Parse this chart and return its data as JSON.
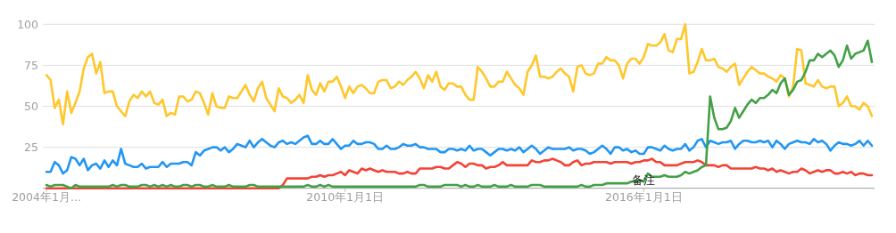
{
  "chart_data": {
    "type": "line",
    "x": [
      "2004-01",
      "2004-02",
      "2004-03",
      "2004-04",
      "2004-05",
      "2004-06",
      "2004-07",
      "2004-08",
      "2004-09",
      "2004-10",
      "2004-11",
      "2004-12",
      "2005-01",
      "2005-02",
      "2005-03",
      "2005-04",
      "2005-05",
      "2005-06",
      "2005-07",
      "2005-08",
      "2005-09",
      "2005-10",
      "2005-11",
      "2005-12",
      "2006-01",
      "2006-02",
      "2006-03",
      "2006-04",
      "2006-05",
      "2006-06",
      "2006-07",
      "2006-08",
      "2006-09",
      "2006-10",
      "2006-11",
      "2006-12",
      "2007-01",
      "2007-02",
      "2007-03",
      "2007-04",
      "2007-05",
      "2007-06",
      "2007-07",
      "2007-08",
      "2007-09",
      "2007-10",
      "2007-11",
      "2007-12",
      "2008-01",
      "2008-02",
      "2008-03",
      "2008-04",
      "2008-05",
      "2008-06",
      "2008-07",
      "2008-08",
      "2008-09",
      "2008-10",
      "2008-11",
      "2008-12",
      "2009-01",
      "2009-02",
      "2009-03",
      "2009-04",
      "2009-05",
      "2009-06",
      "2009-07",
      "2009-08",
      "2009-09",
      "2009-10",
      "2009-11",
      "2009-12",
      "2010-01",
      "2010-02",
      "2010-03",
      "2010-04",
      "2010-05",
      "2010-06",
      "2010-07",
      "2010-08",
      "2010-09",
      "2010-10",
      "2010-11",
      "2010-12",
      "2011-01",
      "2011-02",
      "2011-03",
      "2011-04",
      "2011-05",
      "2011-06",
      "2011-07",
      "2011-08",
      "2011-09",
      "2011-10",
      "2011-11",
      "2011-12",
      "2012-01",
      "2012-02",
      "2012-03",
      "2012-04",
      "2012-05",
      "2012-06",
      "2012-07",
      "2012-08",
      "2012-09",
      "2012-10",
      "2012-11",
      "2012-12",
      "2013-01",
      "2013-02",
      "2013-03",
      "2013-04",
      "2013-05",
      "2013-06",
      "2013-07",
      "2013-08",
      "2013-09",
      "2013-10",
      "2013-11",
      "2013-12",
      "2014-01",
      "2014-02",
      "2014-03",
      "2014-04",
      "2014-05",
      "2014-06",
      "2014-07",
      "2014-08",
      "2014-09",
      "2014-10",
      "2014-11",
      "2014-12",
      "2015-01",
      "2015-02",
      "2015-03",
      "2015-04",
      "2015-05",
      "2015-06",
      "2015-07",
      "2015-08",
      "2015-09",
      "2015-10",
      "2015-11",
      "2015-12",
      "2016-01",
      "2016-02",
      "2016-03",
      "2016-04",
      "2016-05",
      "2016-06",
      "2016-07",
      "2016-08",
      "2016-09",
      "2016-10",
      "2016-11",
      "2016-12",
      "2017-01",
      "2017-02",
      "2017-03",
      "2017-04",
      "2017-05",
      "2017-06",
      "2017-07",
      "2017-08",
      "2017-09",
      "2017-10",
      "2017-11",
      "2017-12",
      "2018-01",
      "2018-02",
      "2018-03",
      "2018-04",
      "2018-05",
      "2018-06",
      "2018-07",
      "2018-08",
      "2018-09",
      "2018-10",
      "2018-11",
      "2018-12",
      "2019-01",
      "2019-02",
      "2019-03",
      "2019-04",
      "2019-05",
      "2019-06",
      "2019-07",
      "2019-08",
      "2019-09",
      "2019-10",
      "2019-11",
      "2019-12",
      "2020-01",
      "2020-02",
      "2020-03",
      "2020-04",
      "2020-05",
      "2020-06",
      "2020-07",
      "2020-08"
    ],
    "series": [
      {
        "color": "#2196f3",
        "values": [
          10,
          10,
          16,
          14,
          9,
          11,
          19,
          18,
          14,
          18,
          11,
          14,
          15,
          12,
          17,
          13,
          17,
          14,
          24,
          15,
          14,
          13,
          13,
          15,
          12,
          13,
          13,
          13,
          16,
          13,
          15,
          15,
          15,
          16,
          16,
          14,
          22,
          20,
          23,
          24,
          25,
          25,
          23,
          25,
          22,
          24,
          27,
          26,
          25,
          29,
          25,
          28,
          30,
          28,
          26,
          25,
          28,
          29,
          27,
          28,
          27,
          29,
          31,
          32,
          27,
          27,
          29,
          27,
          27,
          30,
          27,
          24,
          26,
          26,
          29,
          27,
          27,
          28,
          28,
          27,
          24,
          24,
          26,
          24,
          24,
          25,
          27,
          26,
          26,
          27,
          25,
          25,
          24,
          24,
          24,
          22,
          22,
          24,
          24,
          23,
          24,
          23,
          26,
          23,
          24,
          24,
          22,
          20,
          22,
          24,
          24,
          23,
          24,
          23,
          25,
          22,
          24,
          26,
          24,
          21,
          23,
          25,
          24,
          24,
          24,
          24,
          25,
          23,
          24,
          24,
          23,
          21,
          22,
          24,
          26,
          24,
          21,
          25,
          25,
          23,
          24,
          22,
          23,
          21,
          21,
          25,
          25,
          24,
          23,
          26,
          24,
          23,
          24,
          24,
          27,
          23,
          25,
          29,
          30,
          25,
          29,
          28,
          27,
          28,
          28,
          29,
          24,
          27,
          29,
          29,
          28,
          28,
          29,
          28,
          29,
          25,
          29,
          27,
          24,
          27,
          28,
          29,
          28,
          28,
          27,
          30,
          28,
          29,
          27,
          23,
          26,
          28,
          27,
          27,
          26,
          27,
          29,
          26,
          29,
          26
        ]
      },
      {
        "color": "#f44336",
        "values": [
          0,
          0,
          0,
          0,
          0,
          0,
          0,
          0,
          0,
          0,
          0,
          0,
          0,
          0,
          0,
          0,
          0,
          0,
          0,
          0,
          0,
          0,
          0,
          0,
          0,
          0,
          0,
          0,
          0,
          0,
          0,
          0,
          0,
          0,
          0,
          0,
          0,
          0,
          0,
          0,
          0,
          0,
          0,
          0,
          0,
          0,
          0,
          0,
          0,
          0,
          0,
          0,
          0,
          0,
          0,
          0,
          0,
          2,
          6,
          6,
          6,
          6,
          6,
          6,
          7,
          7,
          8,
          7,
          8,
          8,
          9,
          10,
          8,
          11,
          10,
          9,
          12,
          11,
          12,
          11,
          10,
          11,
          10,
          10,
          10,
          9,
          9,
          10,
          9,
          9,
          12,
          12,
          12,
          12,
          13,
          13,
          12,
          12,
          14,
          16,
          15,
          13,
          15,
          15,
          14,
          14,
          12,
          13,
          13,
          14,
          16,
          14,
          14,
          14,
          14,
          14,
          14,
          17,
          16,
          16,
          17,
          17,
          18,
          17,
          16,
          14,
          14,
          16,
          17,
          14,
          15,
          15,
          16,
          16,
          16,
          16,
          15,
          16,
          16,
          16,
          16,
          15,
          16,
          16,
          17,
          17,
          18,
          16,
          16,
          14,
          14,
          14,
          14,
          15,
          16,
          16,
          16,
          17,
          16,
          14,
          14,
          14,
          13,
          14,
          14,
          12,
          12,
          12,
          12,
          12,
          12,
          13,
          12,
          12,
          11,
          12,
          10,
          11,
          10,
          9,
          10,
          10,
          12,
          11,
          9,
          10,
          11,
          10,
          11,
          11,
          9,
          9,
          10,
          9,
          10,
          8,
          9,
          9,
          8,
          8
        ]
      },
      {
        "color": "#ffc72c",
        "values": [
          69,
          66,
          49,
          54,
          39,
          59,
          46,
          52,
          59,
          73,
          80,
          82,
          70,
          77,
          58,
          59,
          59,
          50,
          47,
          44,
          53,
          57,
          55,
          59,
          56,
          59,
          52,
          51,
          54,
          44,
          46,
          45,
          56,
          56,
          53,
          54,
          59,
          58,
          52,
          45,
          58,
          50,
          49,
          49,
          56,
          55,
          55,
          59,
          63,
          57,
          53,
          61,
          65,
          55,
          51,
          47,
          61,
          56,
          55,
          52,
          54,
          57,
          52,
          69,
          60,
          57,
          64,
          59,
          65,
          65,
          68,
          62,
          55,
          62,
          58,
          62,
          63,
          61,
          58,
          58,
          65,
          66,
          66,
          61,
          62,
          65,
          63,
          66,
          68,
          71,
          67,
          61,
          69,
          65,
          71,
          62,
          60,
          64,
          64,
          62,
          62,
          57,
          54,
          54,
          74,
          71,
          67,
          62,
          62,
          65,
          65,
          71,
          67,
          63,
          61,
          57,
          71,
          75,
          81,
          68,
          68,
          67,
          68,
          71,
          73,
          70,
          68,
          59,
          74,
          75,
          70,
          69,
          70,
          76,
          76,
          80,
          78,
          78,
          75,
          67,
          76,
          79,
          79,
          76,
          80,
          88,
          87,
          87,
          89,
          94,
          84,
          83,
          91,
          91,
          100,
          70,
          71,
          77,
          85,
          78,
          78,
          79,
          74,
          73,
          71,
          74,
          76,
          63,
          67,
          71,
          74,
          72,
          70,
          70,
          68,
          67,
          65,
          69,
          67,
          56,
          62,
          85,
          84,
          64,
          63,
          62,
          66,
          62,
          61,
          62,
          62,
          50,
          52,
          56,
          50,
          50,
          48,
          52,
          50,
          44
        ]
      },
      {
        "color": "#43a047",
        "values": [
          2,
          1,
          2,
          2,
          2,
          1,
          0,
          2,
          1,
          1,
          1,
          1,
          1,
          1,
          1,
          1,
          2,
          1,
          2,
          2,
          1,
          1,
          1,
          2,
          2,
          1,
          2,
          1,
          2,
          1,
          2,
          1,
          1,
          2,
          2,
          1,
          2,
          2,
          1,
          1,
          2,
          1,
          1,
          1,
          2,
          1,
          1,
          1,
          1,
          2,
          2,
          1,
          1,
          1,
          1,
          1,
          1,
          1,
          1,
          1,
          1,
          1,
          1,
          2,
          1,
          1,
          2,
          1,
          2,
          1,
          1,
          1,
          1,
          1,
          1,
          1,
          1,
          1,
          1,
          1,
          1,
          1,
          1,
          1,
          1,
          1,
          1,
          1,
          1,
          1,
          2,
          2,
          1,
          1,
          1,
          1,
          2,
          2,
          2,
          2,
          1,
          2,
          1,
          1,
          2,
          1,
          1,
          1,
          2,
          1,
          1,
          1,
          2,
          1,
          1,
          1,
          1,
          2,
          2,
          2,
          1,
          1,
          1,
          1,
          1,
          1,
          1,
          1,
          1,
          2,
          1,
          1,
          2,
          2,
          2,
          3,
          3,
          3,
          3,
          3,
          3,
          4,
          4,
          5,
          4,
          9,
          7,
          7,
          7,
          8,
          7,
          7,
          7,
          8,
          10,
          9,
          10,
          11,
          13,
          14,
          56,
          43,
          36,
          36,
          37,
          41,
          49,
          43,
          47,
          51,
          54,
          52,
          55,
          55,
          57,
          60,
          58,
          64,
          67,
          57,
          60,
          65,
          66,
          71,
          78,
          78,
          82,
          80,
          82,
          84,
          81,
          74,
          78,
          87,
          79,
          82,
          83,
          84,
          90,
          77
        ]
      }
    ],
    "xlim": [
      "2004-01",
      "2020-08"
    ],
    "xticks": [
      {
        "value": "2004-01",
        "label": "2004年1月..."
      },
      {
        "value": "2010-01",
        "label": "2010年1月1日"
      },
      {
        "value": "2016-01",
        "label": "2016年1月1日"
      }
    ],
    "ylim": [
      0,
      100
    ],
    "yticks": [
      25,
      50,
      75,
      100
    ],
    "grid": "y",
    "annotations": [
      {
        "text": "备注",
        "x": "2016-01",
        "y": 5
      }
    ]
  }
}
